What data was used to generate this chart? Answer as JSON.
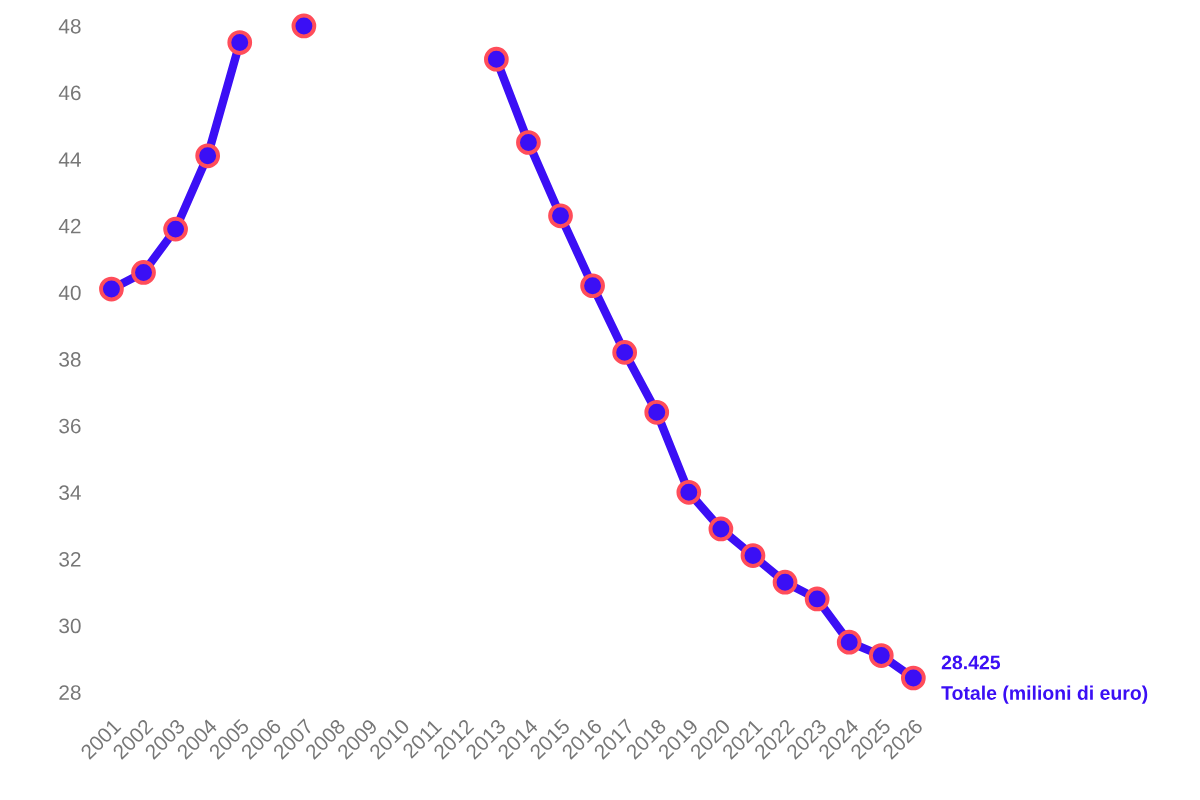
{
  "chart_data": {
    "type": "line",
    "categories": [
      "2001",
      "2002",
      "2003",
      "2004",
      "2005",
      "2006",
      "2007",
      "2008",
      "2009",
      "2010",
      "2011",
      "2012",
      "2013",
      "2014",
      "2015",
      "2016",
      "2017",
      "2018",
      "2019",
      "2020",
      "2021",
      "2022",
      "2023",
      "2024",
      "2025",
      "2026"
    ],
    "ylim": [
      28,
      48
    ],
    "yticks": [
      28,
      30,
      32,
      34,
      36,
      38,
      40,
      42,
      44,
      46,
      48
    ],
    "marker": "circle",
    "line_style": "solid",
    "series": [
      {
        "name": "Totale (milioni di euro)",
        "color": "#3b0ff5",
        "values": [
          40.1,
          40.6,
          41.9,
          44.1,
          47.5,
          null,
          48.0,
          null,
          null,
          null,
          null,
          null,
          47.0,
          44.5,
          42.3,
          40.2,
          38.2,
          36.4,
          34.0,
          32.9,
          32.1,
          31.3,
          30.8,
          29.5,
          29.1,
          28.425
        ],
        "value_labels": [
          null,
          null,
          null,
          null,
          null,
          null,
          null,
          null,
          null,
          null,
          null,
          null,
          null,
          null,
          null,
          null,
          null,
          null,
          null,
          null,
          null,
          null,
          null,
          null,
          null,
          "28.425"
        ]
      }
    ]
  }
}
